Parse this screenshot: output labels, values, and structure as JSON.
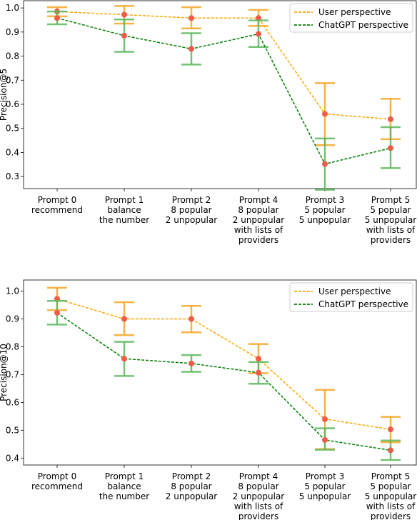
{
  "chart_data": [
    {
      "type": "line",
      "ylabel": "Precision@5",
      "ylim": [
        0.25,
        1.03
      ],
      "yticks": [
        1.0,
        0.9,
        0.8,
        0.7,
        0.6,
        0.5,
        0.4,
        0.3
      ],
      "ytick_labels": [
        "1.0",
        "0.9",
        "0.8",
        "0.7",
        "0.6",
        "0.5",
        "0.4",
        "0.3"
      ],
      "categories": [
        [
          "Prompt 0",
          "recommend"
        ],
        [
          "Prompt 1",
          "balance",
          "the number"
        ],
        [
          "Prompt 2",
          "8 popular",
          "2 unpopular"
        ],
        [
          "Prompt 4",
          "8 popular",
          "2 unpopular",
          "with lists of",
          "providers"
        ],
        [
          "Prompt 3",
          "5 popular",
          "5 unpopular"
        ],
        [
          "Prompt 5",
          "5 popular",
          "5 unpopular",
          "with lists of",
          "providers"
        ]
      ],
      "legend_position": "top-right",
      "series": [
        {
          "name": "User perspective",
          "color": "#ffa500",
          "linestyle": "dashed",
          "values": [
            0.985,
            0.972,
            0.958,
            0.958,
            0.56,
            0.538
          ],
          "err_low": [
            0.965,
            0.935,
            0.915,
            0.925,
            0.43,
            0.455
          ],
          "err_high": [
            1.003,
            1.008,
            1.003,
            0.992,
            0.688,
            0.623
          ]
        },
        {
          "name": "ChatGPT perspective",
          "color": "#008000",
          "linestyle": "dashed",
          "values": [
            0.958,
            0.885,
            0.83,
            0.892,
            0.352,
            0.418
          ],
          "err_low": [
            0.932,
            0.818,
            0.765,
            0.838,
            0.245,
            0.335
          ],
          "err_high": [
            0.985,
            0.952,
            0.895,
            0.948,
            0.458,
            0.505
          ]
        }
      ]
    },
    {
      "type": "line",
      "ylabel": "Precision@10",
      "ylim": [
        0.375,
        1.04
      ],
      "yticks": [
        1.0,
        0.9,
        0.8,
        0.7,
        0.6,
        0.5,
        0.4
      ],
      "ytick_labels": [
        "1.0",
        "0.9",
        "0.8",
        "0.7",
        "0.6",
        "0.5",
        "0.4"
      ],
      "categories": [
        [
          "Prompt 0",
          "recommend"
        ],
        [
          "Prompt 1",
          "balance",
          "the number"
        ],
        [
          "Prompt 2",
          "8 popular",
          "2 unpopular"
        ],
        [
          "Prompt 4",
          "8 popular",
          "2 unpopular",
          "with lists of",
          "providers"
        ],
        [
          "Prompt 3",
          "5 popular",
          "5 unpopular"
        ],
        [
          "Prompt 5",
          "5 popular",
          "5 unpopular",
          "with lists of",
          "providers"
        ]
      ],
      "legend_position": "top-right",
      "series": [
        {
          "name": "User perspective",
          "color": "#ffa500",
          "linestyle": "dashed",
          "values": [
            0.972,
            0.9,
            0.9,
            0.757,
            0.54,
            0.503
          ],
          "err_low": [
            0.932,
            0.842,
            0.852,
            0.705,
            0.432,
            0.457
          ],
          "err_high": [
            1.012,
            0.96,
            0.947,
            0.81,
            0.645,
            0.548
          ]
        },
        {
          "name": "ChatGPT perspective",
          "color": "#008000",
          "linestyle": "dashed",
          "values": [
            0.922,
            0.757,
            0.74,
            0.707,
            0.465,
            0.428
          ],
          "err_low": [
            0.88,
            0.695,
            0.71,
            0.667,
            0.43,
            0.393
          ],
          "err_high": [
            0.965,
            0.818,
            0.77,
            0.745,
            0.507,
            0.463
          ]
        }
      ]
    }
  ],
  "styles": {
    "marker_color": "#f05a46",
    "user_err_color": "#f6a623",
    "chatgpt_err_color": "#5cb85c",
    "legend_border": "#cccccc"
  }
}
